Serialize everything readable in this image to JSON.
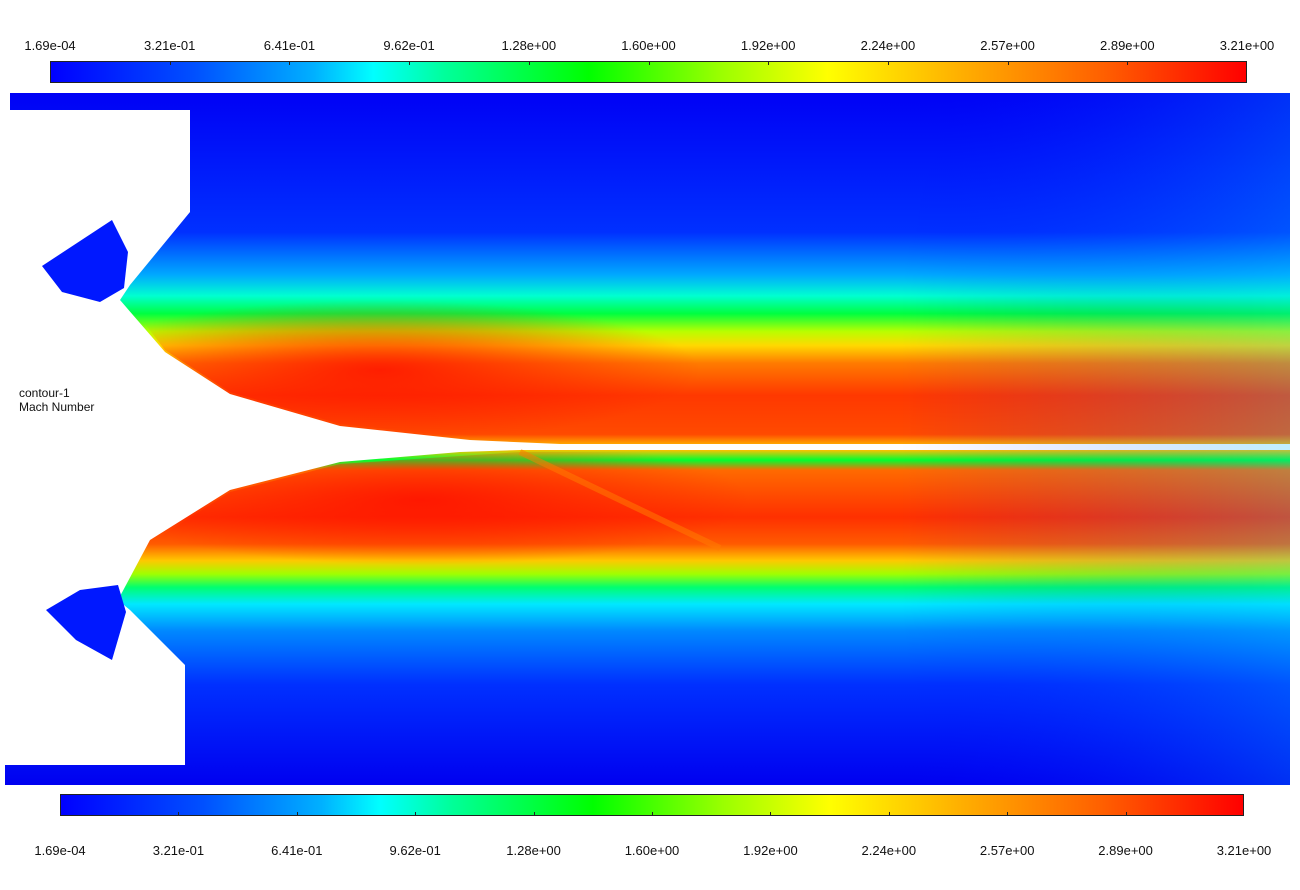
{
  "contour": {
    "name": "contour-1",
    "variable": "Mach Number"
  },
  "legend": {
    "min": 0.000169,
    "max": 3.21,
    "tick_labels": [
      "1.69e-04",
      "3.21e-01",
      "6.41e-01",
      "9.62e-01",
      "1.28e+00",
      "1.60e+00",
      "1.92e+00",
      "2.24e+00",
      "2.57e+00",
      "2.89e+00",
      "3.21e+00"
    ],
    "colormap": [
      "#0000ff",
      "#00ffff",
      "#00ff00",
      "#ffff00",
      "#ff0000"
    ]
  },
  "colors": {
    "background": "#ffffff",
    "low": "#0000ff",
    "mid_low": "#00ffff",
    "mid": "#00ff00",
    "mid_high": "#ffff00",
    "high": "#ff0000"
  }
}
